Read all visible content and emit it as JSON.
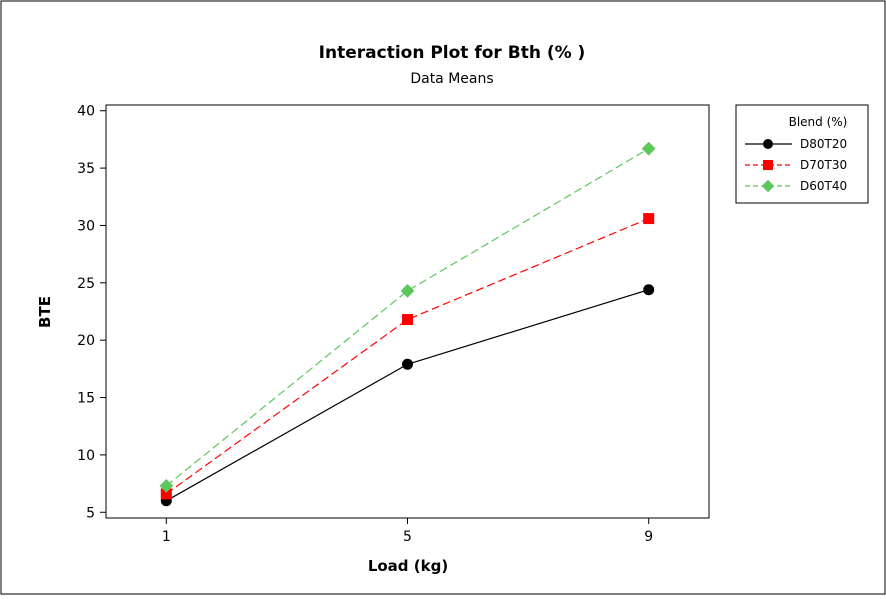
{
  "chart_data": {
    "type": "line",
    "title": "Interaction Plot for Bth (% )",
    "subtitle": "Data Means",
    "xlabel": "Load (kg)",
    "ylabel": "BTE",
    "x": [
      1,
      5,
      9
    ],
    "x_ticks": [
      "1",
      "5",
      "9"
    ],
    "ylim": [
      4.5,
      40.5
    ],
    "y_ticks": [
      "5",
      "10",
      "15",
      "20",
      "25",
      "30",
      "35",
      "40"
    ],
    "grid": false,
    "legend_position": "right",
    "legend_title": "Blend (%)",
    "series": [
      {
        "name": "D80T20",
        "values": [
          6.0,
          17.9,
          24.4
        ],
        "color": "#000000",
        "marker": "circle",
        "line": "solid"
      },
      {
        "name": "D70T30",
        "values": [
          6.6,
          21.8,
          30.6
        ],
        "color": "#ff0000",
        "marker": "square",
        "line": "dashed"
      },
      {
        "name": "D60T40",
        "values": [
          7.3,
          24.3,
          36.7
        ],
        "color": "#5cc85c",
        "marker": "diamond",
        "line": "dashed"
      }
    ]
  }
}
